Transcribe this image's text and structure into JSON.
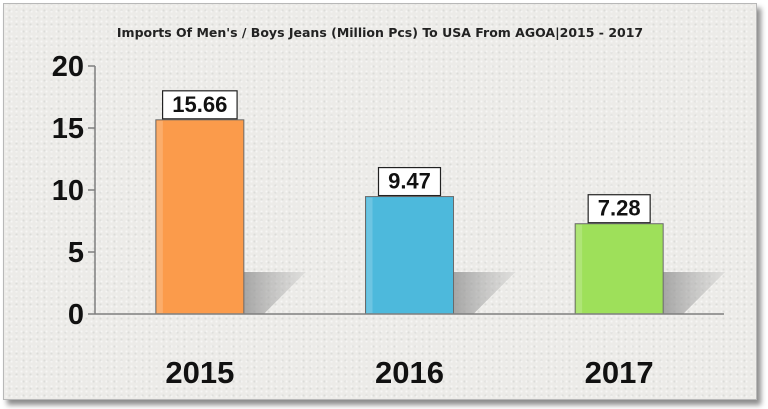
{
  "chart_data": {
    "type": "bar",
    "title": "Imports Of Men's / Boys Jeans (Million Pcs) To USA From AGOA|2015 - 2017",
    "xlabel": "",
    "ylabel": "",
    "categories": [
      "2015",
      "2016",
      "2017"
    ],
    "values": [
      15.66,
      9.47,
      7.28
    ],
    "data_labels": [
      "15.66",
      "9.47",
      "7.28"
    ],
    "y_ticks": [
      0,
      5,
      10,
      15,
      20
    ],
    "y_tick_labels": [
      "0",
      "5",
      "10",
      "15",
      "20"
    ],
    "ylim": [
      0,
      20
    ],
    "grid": false,
    "legend": "none",
    "bar_colors": [
      "#fb9b4b",
      "#4db9dc",
      "#9ee05a"
    ]
  }
}
